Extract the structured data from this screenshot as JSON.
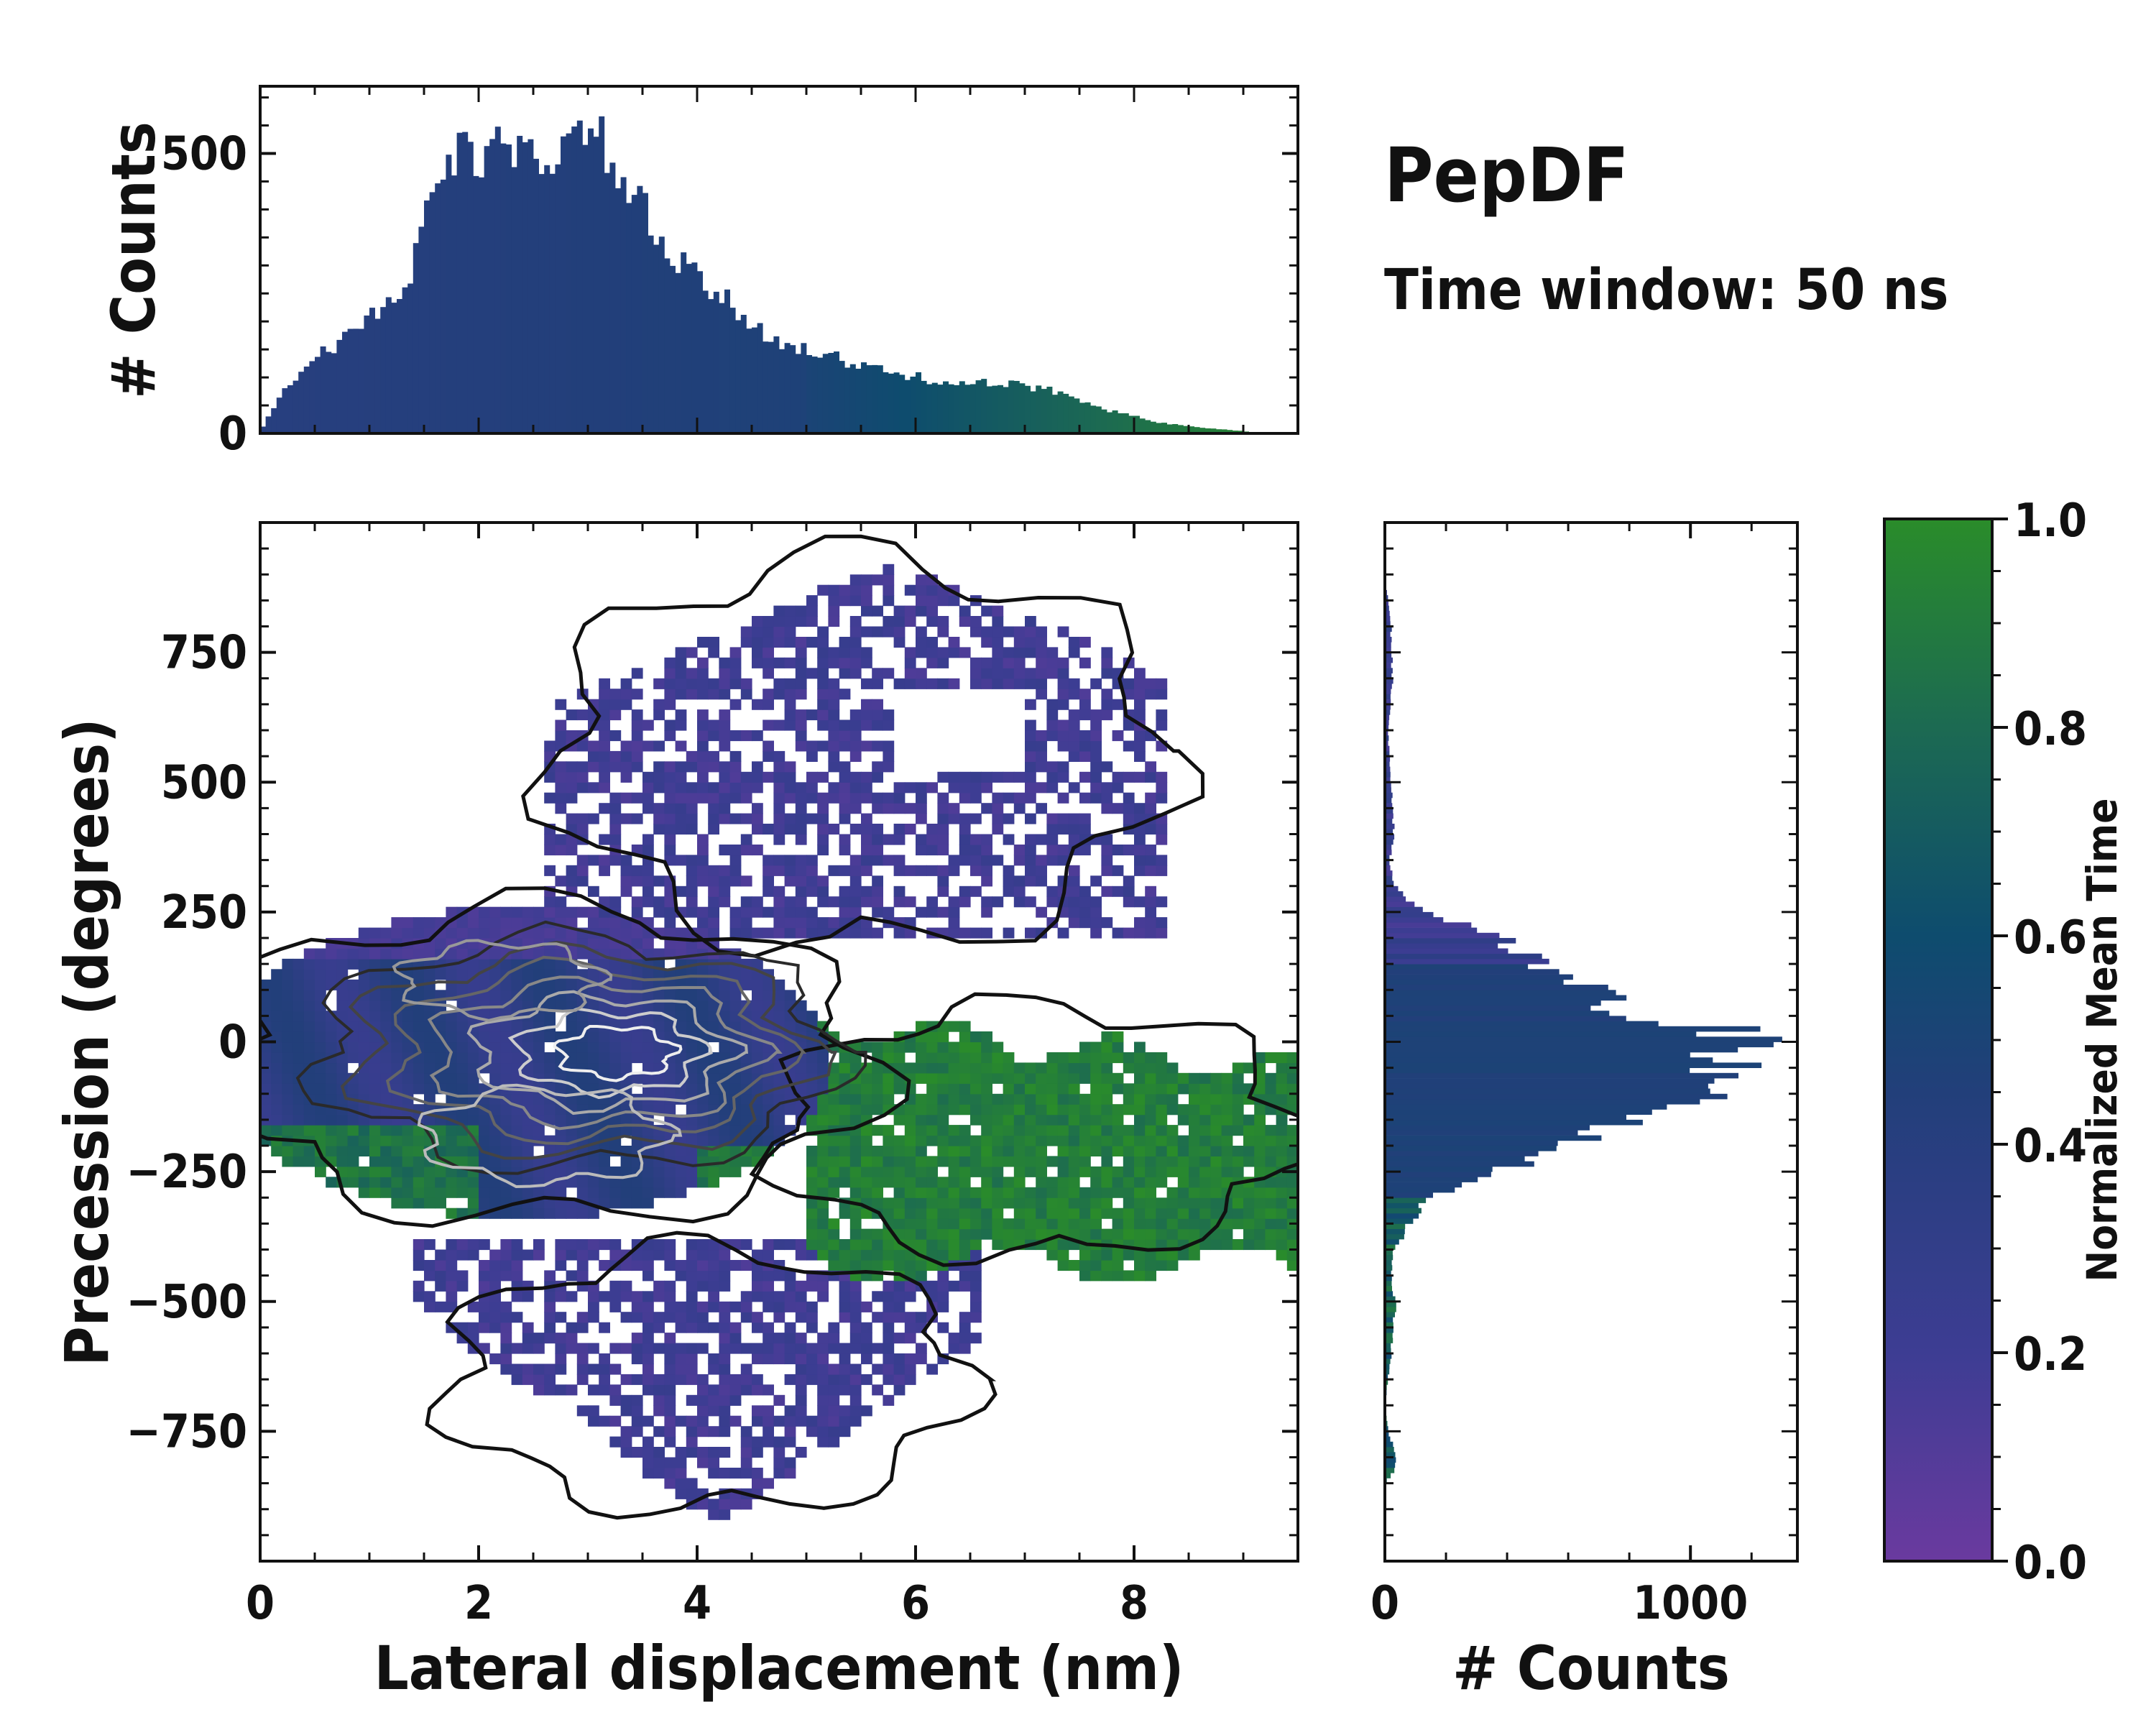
{
  "chart_data": {
    "type": "heatmap",
    "title": "PepDF",
    "subtitle": "Time window: 50 ns",
    "main": {
      "xlabel": "Lateral displacement (nm)",
      "ylabel": "Precession (degrees)",
      "xlim": [
        0,
        9.5
      ],
      "ylim": [
        -1000,
        1000
      ],
      "xticks": [
        0,
        2,
        4,
        6,
        8
      ],
      "xtick_labels": [
        "0",
        "2",
        "4",
        "6",
        "8"
      ],
      "yticks": [
        -750,
        -500,
        -250,
        0,
        250,
        500,
        750
      ],
      "ytick_labels": [
        "−750",
        "−500",
        "−250",
        "0",
        "250",
        "500",
        "750"
      ],
      "regions": [
        {
          "name": "dense-cluster",
          "x_range": [
            0,
            5.2
          ],
          "y_range": [
            -360,
            260
          ],
          "dominant_time": 0.38
        },
        {
          "name": "green-band",
          "x_range": [
            5.0,
            9.5
          ],
          "y_range": [
            -450,
            60
          ],
          "dominant_time": 0.95
        },
        {
          "name": "upper-scatter",
          "x_range": [
            2.6,
            8.4
          ],
          "y_range": [
            200,
            940
          ],
          "dominant_time": 0.18
        },
        {
          "name": "lower-scatter",
          "x_range": [
            1.3,
            6.6
          ],
          "y_range": [
            -920,
            -390
          ],
          "dominant_time": 0.18
        }
      ],
      "contour_centers": [
        {
          "x": 3.3,
          "y": 0
        },
        {
          "x": 2.2,
          "y": 120
        },
        {
          "x": 2.6,
          "y": -180
        }
      ]
    },
    "top_histogram": {
      "xlabel": "",
      "ylabel": "# Counts",
      "xlim": [
        0,
        9.5
      ],
      "ylim": [
        0,
        620
      ],
      "yticks": [
        0,
        500
      ],
      "ytick_labels": [
        "0",
        "500"
      ],
      "bin_width": 0.05,
      "profile_x": [
        0,
        0.2,
        0.5,
        0.8,
        1.0,
        1.2,
        1.4,
        1.5,
        1.7,
        1.9,
        2.1,
        2.3,
        2.6,
        2.9,
        3.1,
        3.3,
        3.5,
        3.7,
        3.9,
        4.1,
        4.3,
        4.6,
        5.0,
        5.5,
        6.0,
        6.5,
        7.0,
        7.4,
        7.8,
        8.2,
        8.6,
        9.0,
        9.2,
        9.5
      ],
      "profile_y": [
        5,
        70,
        140,
        170,
        210,
        240,
        290,
        400,
        480,
        500,
        510,
        490,
        500,
        520,
        525,
        460,
        400,
        330,
        290,
        260,
        230,
        180,
        150,
        120,
        100,
        90,
        85,
        70,
        40,
        20,
        10,
        4,
        0,
        0
      ]
    },
    "right_histogram": {
      "xlabel": "# Counts",
      "ylabel": "",
      "xlim": [
        0,
        1350
      ],
      "ylim": [
        -1000,
        1000
      ],
      "xticks": [
        0,
        1000
      ],
      "xtick_labels": [
        "0",
        "1000"
      ],
      "bin_width": 10,
      "profile_y": [
        -1000,
        -850,
        -820,
        -800,
        -760,
        -700,
        -600,
        -500,
        -460,
        -400,
        -350,
        -300,
        -250,
        -200,
        -150,
        -100,
        -50,
        0,
        30,
        60,
        100,
        150,
        200,
        250,
        300,
        350,
        400,
        500,
        600,
        700,
        800,
        850,
        900,
        1000
      ],
      "profile_x": [
        0,
        0,
        35,
        40,
        15,
        0,
        20,
        35,
        20,
        30,
        80,
        150,
        350,
        620,
        800,
        1000,
        1100,
        1220,
        1050,
        800,
        700,
        500,
        380,
        120,
        30,
        15,
        30,
        20,
        10,
        25,
        20,
        10,
        0,
        0
      ]
    },
    "colorbar": {
      "label": "Normalized Mean Time",
      "range": [
        0,
        1
      ],
      "ticks": [
        0.0,
        0.2,
        0.4,
        0.6,
        0.8,
        1.0
      ],
      "tick_labels": [
        "0.0",
        "0.2",
        "0.4",
        "0.6",
        "0.8",
        "1.0"
      ],
      "colors": [
        "#6a3a9f",
        "#3d3d93",
        "#223f7a",
        "#0e4c6e",
        "#1c6a52",
        "#2a8c2a"
      ]
    }
  }
}
